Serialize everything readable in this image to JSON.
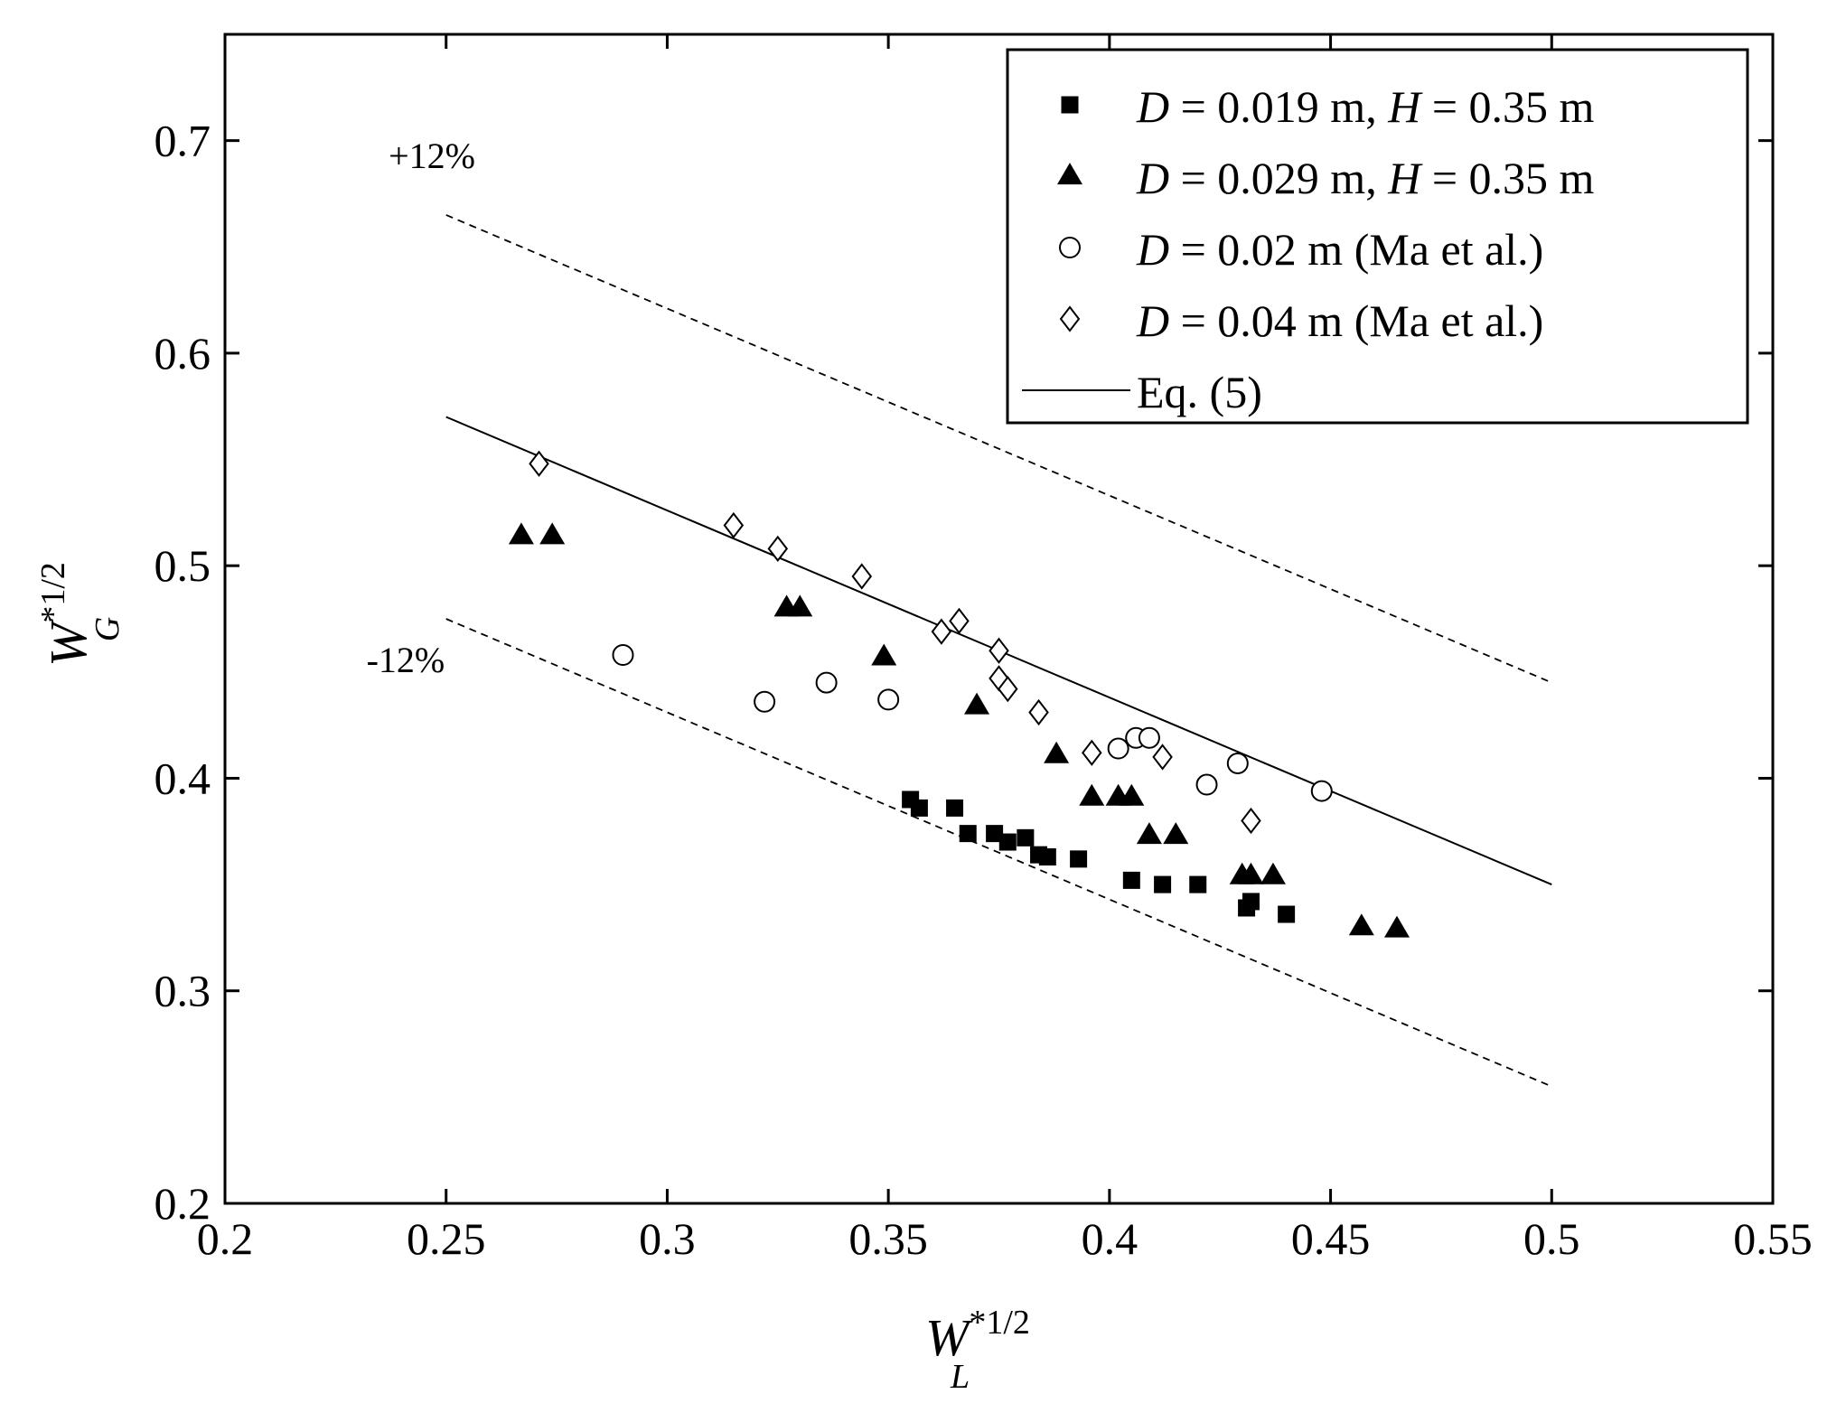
{
  "chart_data": {
    "type": "scatter",
    "title": "",
    "xlabel": {
      "base": "W",
      "sup": "*1/2",
      "sub": "L"
    },
    "ylabel": {
      "base": "W",
      "sup": "*1/2",
      "sub": "G"
    },
    "xlim": [
      0.2,
      0.55
    ],
    "ylim": [
      0.2,
      0.75
    ],
    "xticks": [
      0.2,
      0.25,
      0.3,
      0.35,
      0.4,
      0.45,
      0.5,
      0.55
    ],
    "xtick_labels": [
      "0.2",
      "0.25",
      "0.3",
      "0.35",
      "0.4",
      "0.45",
      "0.5",
      "0.55"
    ],
    "yticks": [
      0.2,
      0.3,
      0.4,
      0.5,
      0.6,
      0.7
    ],
    "ytick_labels": [
      "0.2",
      "0.3",
      "0.4",
      "0.5",
      "0.6",
      "0.7"
    ],
    "grid": false,
    "legend_position": "top-right",
    "legend": [
      {
        "marker": "square-filled",
        "var1": "D",
        "text1": " = 0.019 m, ",
        "var2": "H",
        "text2": " = 0.35 m"
      },
      {
        "marker": "triangle-filled",
        "var1": "D",
        "text1": " = 0.029 m, ",
        "var2": "H",
        "text2": " = 0.35 m"
      },
      {
        "marker": "circle-open",
        "var1": "D",
        "text1": " = 0.02 m (Ma et al.)",
        "var2": "",
        "text2": ""
      },
      {
        "marker": "diamond-open",
        "var1": "D",
        "text1": " = 0.04 m (Ma et al.)",
        "var2": "",
        "text2": ""
      },
      {
        "marker": "line-solid",
        "var1": "",
        "text1": "Eq. (5)",
        "var2": "",
        "text2": ""
      }
    ],
    "series": [
      {
        "name": "D = 0.019 m, H = 0.35 m",
        "marker": "square-filled",
        "points": [
          [
            0.355,
            0.39
          ],
          [
            0.357,
            0.386
          ],
          [
            0.365,
            0.386
          ],
          [
            0.368,
            0.374
          ],
          [
            0.374,
            0.374
          ],
          [
            0.377,
            0.37
          ],
          [
            0.381,
            0.372
          ],
          [
            0.384,
            0.364
          ],
          [
            0.386,
            0.363
          ],
          [
            0.393,
            0.362
          ],
          [
            0.405,
            0.352
          ],
          [
            0.412,
            0.35
          ],
          [
            0.42,
            0.35
          ],
          [
            0.431,
            0.339
          ],
          [
            0.432,
            0.342
          ],
          [
            0.44,
            0.336
          ]
        ]
      },
      {
        "name": "D = 0.029 m, H = 0.35 m",
        "marker": "triangle-filled",
        "points": [
          [
            0.267,
            0.514
          ],
          [
            0.274,
            0.514
          ],
          [
            0.327,
            0.48
          ],
          [
            0.33,
            0.48
          ],
          [
            0.349,
            0.457
          ],
          [
            0.37,
            0.434
          ],
          [
            0.388,
            0.411
          ],
          [
            0.396,
            0.391
          ],
          [
            0.402,
            0.391
          ],
          [
            0.405,
            0.391
          ],
          [
            0.409,
            0.373
          ],
          [
            0.415,
            0.373
          ],
          [
            0.43,
            0.354
          ],
          [
            0.432,
            0.354
          ],
          [
            0.437,
            0.354
          ],
          [
            0.457,
            0.33
          ],
          [
            0.465,
            0.329
          ]
        ]
      },
      {
        "name": "D = 0.02 m (Ma et al.)",
        "marker": "circle-open",
        "points": [
          [
            0.29,
            0.458
          ],
          [
            0.322,
            0.436
          ],
          [
            0.336,
            0.445
          ],
          [
            0.35,
            0.437
          ],
          [
            0.402,
            0.414
          ],
          [
            0.406,
            0.419
          ],
          [
            0.409,
            0.419
          ],
          [
            0.422,
            0.397
          ],
          [
            0.429,
            0.407
          ],
          [
            0.448,
            0.394
          ]
        ]
      },
      {
        "name": "D = 0.04 m (Ma et al.)",
        "marker": "diamond-open",
        "points": [
          [
            0.271,
            0.548
          ],
          [
            0.315,
            0.519
          ],
          [
            0.325,
            0.508
          ],
          [
            0.344,
            0.495
          ],
          [
            0.362,
            0.469
          ],
          [
            0.366,
            0.474
          ],
          [
            0.375,
            0.46
          ],
          [
            0.375,
            0.447
          ],
          [
            0.377,
            0.442
          ],
          [
            0.384,
            0.431
          ],
          [
            0.396,
            0.412
          ],
          [
            0.412,
            0.41
          ],
          [
            0.432,
            0.38
          ]
        ]
      },
      {
        "name": "Eq. (5)",
        "style": "solid",
        "points": [
          [
            0.25,
            0.57
          ],
          [
            0.5,
            0.35
          ]
        ]
      },
      {
        "name": "+12%",
        "style": "dashed",
        "points": [
          [
            0.25,
            0.665
          ],
          [
            0.5,
            0.445
          ]
        ]
      },
      {
        "name": "-12%",
        "style": "dashed",
        "points": [
          [
            0.25,
            0.475
          ],
          [
            0.5,
            0.255
          ]
        ]
      }
    ],
    "annotations": [
      {
        "text": "+12%",
        "x": 0.237,
        "y": 0.687
      },
      {
        "text": "-12%",
        "x": 0.232,
        "y": 0.45
      }
    ]
  }
}
